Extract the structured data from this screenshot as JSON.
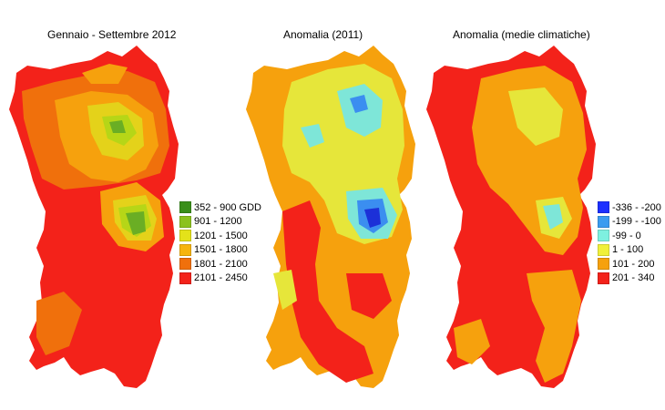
{
  "maps": [
    {
      "title": "Gennaio - Settembre 2012",
      "base": "#f3221a",
      "layers": [
        "#f0700c",
        "#f6a10d",
        "#e4d21a",
        "#b6d617",
        "#6aae24"
      ]
    },
    {
      "title": "Anomalia (2011)",
      "base": "#f6a10d",
      "layers": [
        "#f3221a",
        "#e6e63a",
        "#7ee6d8",
        "#3b8ef0",
        "#1c30d8"
      ]
    },
    {
      "title": "Anomalia (medie climatiche)",
      "base": "#f3221a",
      "layers": [
        "#f6a10d",
        "#e6e63a",
        "#7ee6d8"
      ]
    }
  ],
  "legend_gdd": [
    {
      "label": "352 - 900 GDD",
      "color": "#3a8f1a"
    },
    {
      "label": "901 - 1200",
      "color": "#8cc21e"
    },
    {
      "label": "1201 - 1500",
      "color": "#e4e21a"
    },
    {
      "label": "1501 - 1800",
      "color": "#f6b40d"
    },
    {
      "label": "1801 - 2100",
      "color": "#f0700c"
    },
    {
      "label": "2101 - 2450",
      "color": "#f3221a"
    }
  ],
  "legend_anomaly": [
    {
      "label": "-336 - -200",
      "color": "#1c30ff"
    },
    {
      "label": "-199 - -100",
      "color": "#3b9cf0"
    },
    {
      "label": "-99 - 0",
      "color": "#7ef0e0"
    },
    {
      "label": "1 - 100",
      "color": "#f0f03a"
    },
    {
      "label": "101 - 200",
      "color": "#f6a10d"
    },
    {
      "label": "201 - 340",
      "color": "#f3221a"
    }
  ]
}
